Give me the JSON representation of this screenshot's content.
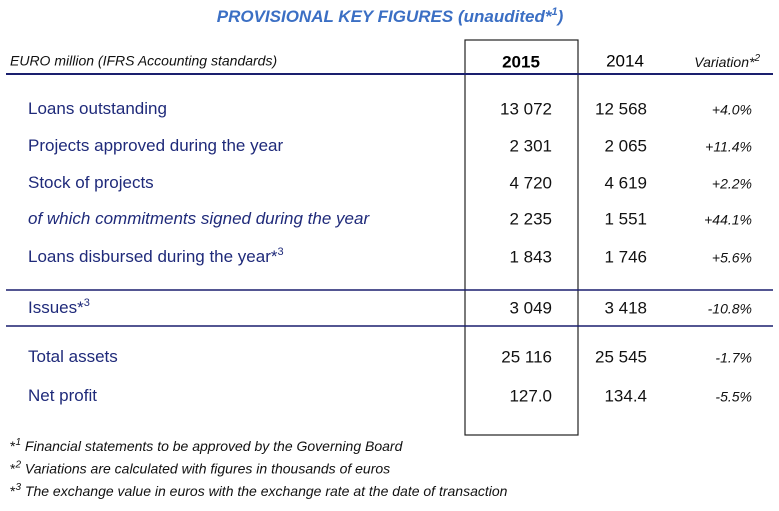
{
  "header": {
    "title": "PROVISIONAL KEY FIGURES (unaudited*",
    "title_sup": "1",
    "title_close": ")"
  },
  "table": {
    "columns": {
      "label": "EURO million (IFRS Accounting standards)",
      "current": "2015",
      "previous": "2014",
      "variation": "Variation*",
      "variation_sup": "2"
    },
    "groups": [
      [
        {
          "label": "Loans outstanding",
          "italic": false,
          "current": "13 072",
          "previous": "12 568",
          "variation": "+4.0%"
        },
        {
          "label": "Projects approved during the year",
          "italic": false,
          "current": "2 301",
          "previous": "2 065",
          "variation": "+11.4%"
        },
        {
          "label": "Stock of projects",
          "italic": false,
          "current": "4 720",
          "previous": "4 619",
          "variation": "+2.2%"
        },
        {
          "label": "of which commitments signed during the year",
          "italic": true,
          "current": "2 235",
          "previous": "1 551",
          "variation": "+44.1%"
        },
        {
          "label": "Loans disbursed during the year*",
          "sup": "3",
          "italic": false,
          "current": "1 843",
          "previous": "1 746",
          "variation": "+5.6%"
        }
      ],
      [
        {
          "label": "Issues*",
          "sup": "3",
          "italic": false,
          "current": "3 049",
          "previous": "3 418",
          "variation": "-10.8%"
        }
      ],
      [
        {
          "label": "Total assets",
          "italic": false,
          "current": "25 116",
          "previous": "25 545",
          "variation": "-1.7%"
        },
        {
          "label": "Net profit",
          "italic": false,
          "current": "127.0",
          "previous": "134.4",
          "variation": "-5.5%"
        }
      ]
    ]
  },
  "footnotes": [
    {
      "mark": "*",
      "num": "1",
      "text": " Financial statements to be approved by the Governing Board"
    },
    {
      "mark": "*",
      "num": "2",
      "text": " Variations are calculated with figures in thousands of euros"
    },
    {
      "mark": "*",
      "num": "3",
      "text": " The exchange value in euros with the exchange rate at the date of transaction"
    }
  ]
}
